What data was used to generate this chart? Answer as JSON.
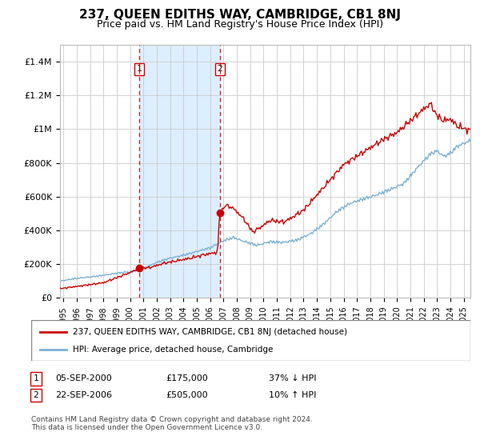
{
  "title": "237, QUEEN EDITHS WAY, CAMBRIDGE, CB1 8NJ",
  "subtitle": "Price paid vs. HM Land Registry's House Price Index (HPI)",
  "title_fontsize": 11,
  "subtitle_fontsize": 9,
  "ylabel_ticks": [
    "£0",
    "£200K",
    "£400K",
    "£600K",
    "£800K",
    "£1M",
    "£1.2M",
    "£1.4M"
  ],
  "ytick_values": [
    0,
    200000,
    400000,
    600000,
    800000,
    1000000,
    1200000,
    1400000
  ],
  "ylim": [
    0,
    1500000
  ],
  "xlim_start": 1994.75,
  "xlim_end": 2025.5,
  "sale1_x": 2000.7,
  "sale1_y": 175000,
  "sale2_x": 2006.73,
  "sale2_y": 505000,
  "sale_color": "#cc0000",
  "hpi_color": "#7ab0d4",
  "shade_color": "#ddeeff",
  "vline_color": "#cc0000",
  "grid_color": "#cccccc",
  "legend_label_red": "237, QUEEN EDITHS WAY, CAMBRIDGE, CB1 8NJ (detached house)",
  "legend_label_blue": "HPI: Average price, detached house, Cambridge",
  "note1_box": "1",
  "note1_date": "05-SEP-2000",
  "note1_price": "£175,000",
  "note1_pct": "37% ↓ HPI",
  "note2_box": "2",
  "note2_date": "22-SEP-2006",
  "note2_price": "£505,000",
  "note2_pct": "10% ↑ HPI",
  "footnote": "Contains HM Land Registry data © Crown copyright and database right 2024.\nThis data is licensed under the Open Government Licence v3.0.",
  "background_color": "#ffffff",
  "plot_bg_color": "#ffffff"
}
